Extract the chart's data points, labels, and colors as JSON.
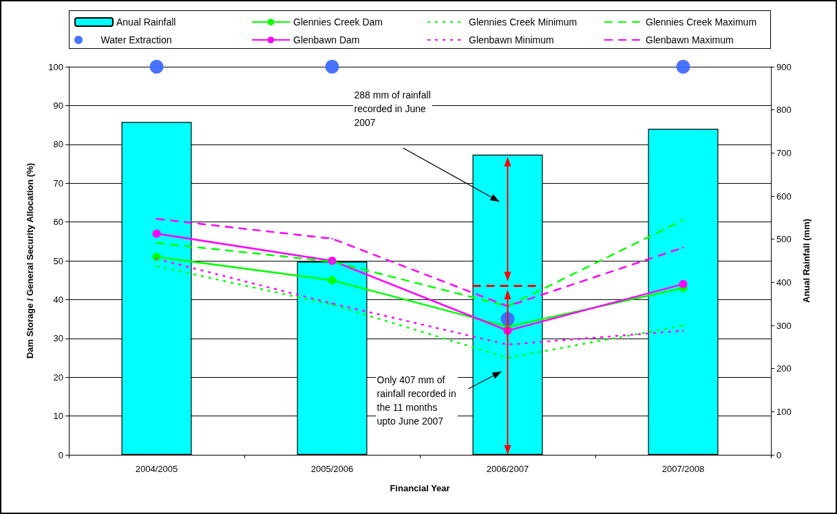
{
  "chart_data": {
    "type": "bar",
    "xlabel": "Financial Year",
    "ylabel": "Dam Storage / General Security Allocation (%)",
    "y2label": "Anual Rainfall (mm)",
    "categories": [
      "2004/2005",
      "2005/2006",
      "2006/2007",
      "2007/2008"
    ],
    "series": [
      {
        "name": "Anual Rainfall",
        "axis": "y2",
        "color": "#00ffff",
        "values": [
          772,
          448,
          696,
          756
        ]
      },
      {
        "name": "Water Extraction",
        "type": "scatter",
        "marker": "circle",
        "color": "#3d6bff",
        "values": [
          100,
          100,
          35,
          100
        ]
      },
      {
        "name": "Glennies Creek Dam",
        "type": "line",
        "marker": "circle",
        "line_style": "solid",
        "color": "#00ff00",
        "values": [
          51,
          45,
          33,
          43
        ]
      },
      {
        "name": "Glenbawn Dam",
        "type": "line",
        "marker": "circle",
        "line_style": "solid",
        "color": "#ff00ff",
        "values": [
          57,
          50,
          32,
          44
        ]
      },
      {
        "name": "Glennies Creek Minimum",
        "type": "line",
        "marker": "none",
        "line_style": "dotted",
        "color": "#00ff00",
        "values": [
          48.6,
          38.7,
          25,
          33.3
        ]
      },
      {
        "name": "Glenbawn Minimum",
        "type": "line",
        "marker": "none",
        "line_style": "dotted",
        "color": "#ff00ff",
        "values": [
          50.5,
          39,
          28.4,
          32
        ]
      },
      {
        "name": "Glennies Creek Maximum",
        "type": "line",
        "marker": "none",
        "line_style": "dashed",
        "color": "#00ff00",
        "values": [
          54.6,
          49.8,
          38.3,
          60.5
        ]
      },
      {
        "name": "Glenbawn Maximum",
        "type": "line",
        "marker": "none",
        "line_style": "dashed",
        "color": "#ff00ff",
        "values": [
          60.8,
          55.7,
          38.3,
          53.4
        ]
      }
    ],
    "ylim": [
      0,
      100
    ],
    "yticks": [
      0,
      10,
      20,
      30,
      40,
      50,
      60,
      70,
      80,
      90,
      100
    ],
    "y2lim": [
      0,
      900
    ],
    "y2ticks": [
      0,
      100,
      200,
      300,
      400,
      500,
      600,
      700,
      800,
      900
    ],
    "ref_lines": [
      {
        "axis": "y",
        "value": 43.6,
        "color": "#ff0000",
        "line_style": "dashed"
      }
    ],
    "annotations": [
      "288 mm of rainfall\nrecorded in June\n2007",
      "Only 407 mm of\nrainfall recorded in\nthe 11 months\nupto June 2007"
    ],
    "grid": "y",
    "legend": "top"
  }
}
